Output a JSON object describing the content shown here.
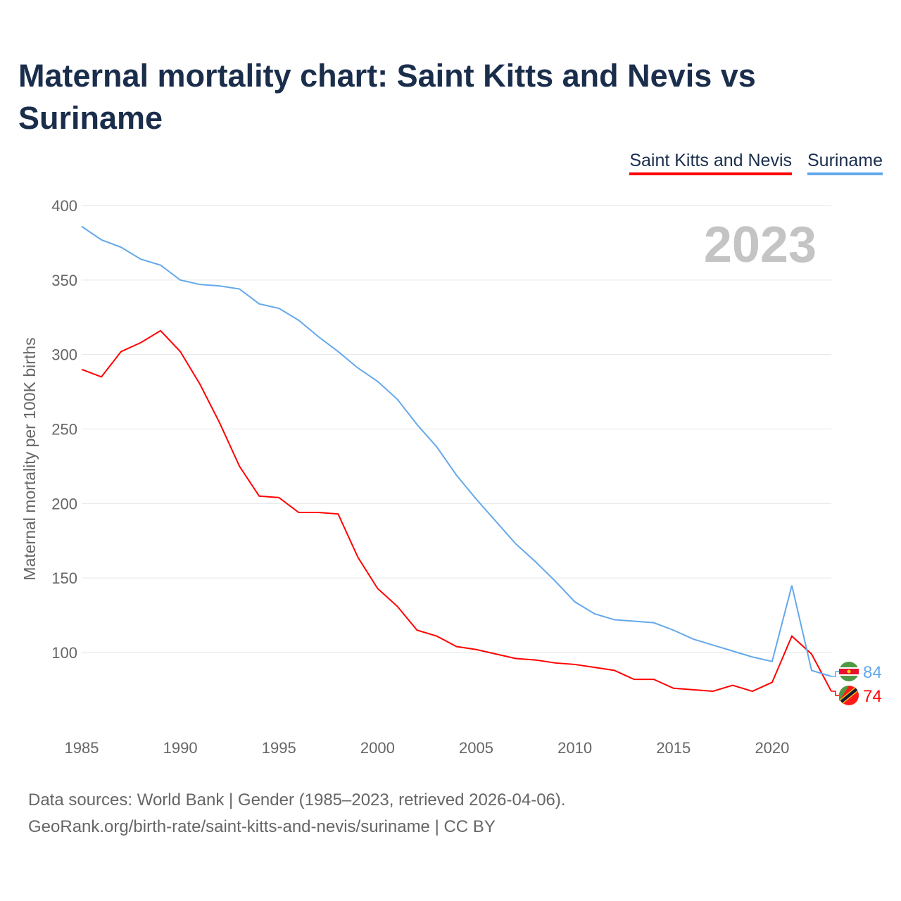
{
  "chart_data": {
    "type": "line",
    "title": "Maternal mortality chart: Saint Kitts and Nevis vs Suriname",
    "xlabel": "",
    "ylabel": "Maternal mortality per 100K births",
    "xlim": [
      1985,
      2023
    ],
    "ylim": [
      40,
      400
    ],
    "x_ticks": [
      1985,
      1990,
      1995,
      2000,
      2005,
      2010,
      2015,
      2020
    ],
    "y_ticks": [
      100,
      150,
      200,
      250,
      300,
      350,
      400
    ],
    "grid": true,
    "legend_position": "top-right",
    "year_watermark": "2023",
    "x": [
      1985,
      1986,
      1987,
      1988,
      1989,
      1990,
      1991,
      1992,
      1993,
      1994,
      1995,
      1996,
      1997,
      1998,
      1999,
      2000,
      2001,
      2002,
      2003,
      2004,
      2005,
      2006,
      2007,
      2008,
      2009,
      2010,
      2011,
      2012,
      2013,
      2014,
      2015,
      2016,
      2017,
      2018,
      2019,
      2020,
      2021,
      2022,
      2023
    ],
    "series": [
      {
        "name": "Saint Kitts and Nevis",
        "color": "#ff0000",
        "end_label": "74",
        "values": [
          290,
          285,
          302,
          308,
          316,
          302,
          280,
          254,
          225,
          205,
          204,
          194,
          194,
          193,
          164,
          143,
          131,
          115,
          111,
          104,
          102,
          99,
          96,
          95,
          93,
          92,
          90,
          88,
          82,
          82,
          76,
          75,
          74,
          78,
          74,
          80,
          111,
          99,
          74
        ]
      },
      {
        "name": "Suriname",
        "color": "#64a8ec",
        "end_label": "84",
        "values": [
          386,
          377,
          372,
          364,
          360,
          350,
          347,
          346,
          344,
          334,
          331,
          323,
          312,
          302,
          291,
          282,
          270,
          253,
          238,
          219,
          203,
          188,
          173,
          161,
          148,
          134,
          126,
          122,
          121,
          120,
          115,
          109,
          105,
          101,
          97,
          94,
          145,
          88,
          84
        ]
      }
    ]
  },
  "footer": {
    "line1": "Data sources: World Bank | Gender (1985–2023, retrieved 2026-04-06).",
    "line2": "GeoRank.org/birth-rate/saint-kitts-and-nevis/suriname | CC BY"
  }
}
